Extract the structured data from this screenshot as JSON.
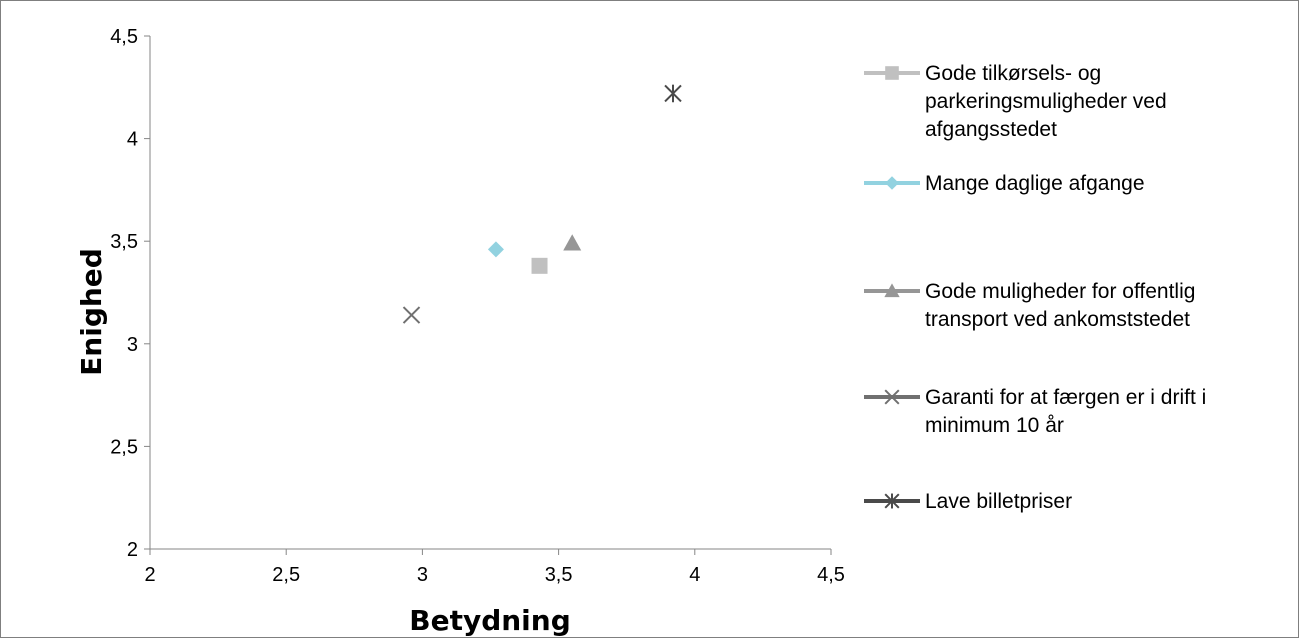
{
  "chart_data": {
    "type": "scatter",
    "title": "",
    "xlabel": "Betydning",
    "ylabel": "Enighed",
    "xlim": [
      2,
      4.5
    ],
    "ylim": [
      2,
      4.5
    ],
    "x_ticks": [
      "2",
      "2,5",
      "3",
      "3,5",
      "4",
      "4,5"
    ],
    "y_ticks": [
      "2",
      "2,5",
      "3",
      "3,5",
      "4",
      "4,5"
    ],
    "grid": false,
    "legend_position": "right",
    "series": [
      {
        "name_lines": [
          "Gode tilkørsels- og",
          "parkeringsmuligheder ved",
          "afgangsstedet"
        ],
        "marker": "square",
        "color": "#c0c0c0",
        "x": 3.43,
        "y": 3.38
      },
      {
        "name_lines": [
          "Mange daglige afgange"
        ],
        "marker": "diamond",
        "color": "#92d2e0",
        "x": 3.27,
        "y": 3.46
      },
      {
        "name_lines": [
          "Gode muligheder for offentlig",
          "transport ved ankomststedet"
        ],
        "marker": "triangle",
        "color": "#969696",
        "x": 3.55,
        "y": 3.49
      },
      {
        "name_lines": [
          "Garanti for at færgen er i drift i",
          "minimum 10 år"
        ],
        "marker": "x",
        "color": "#707070",
        "x": 2.96,
        "y": 3.14
      },
      {
        "name_lines": [
          "Lave billetpriser"
        ],
        "marker": "star",
        "color": "#4a4a4a",
        "x": 3.92,
        "y": 4.22
      }
    ]
  }
}
